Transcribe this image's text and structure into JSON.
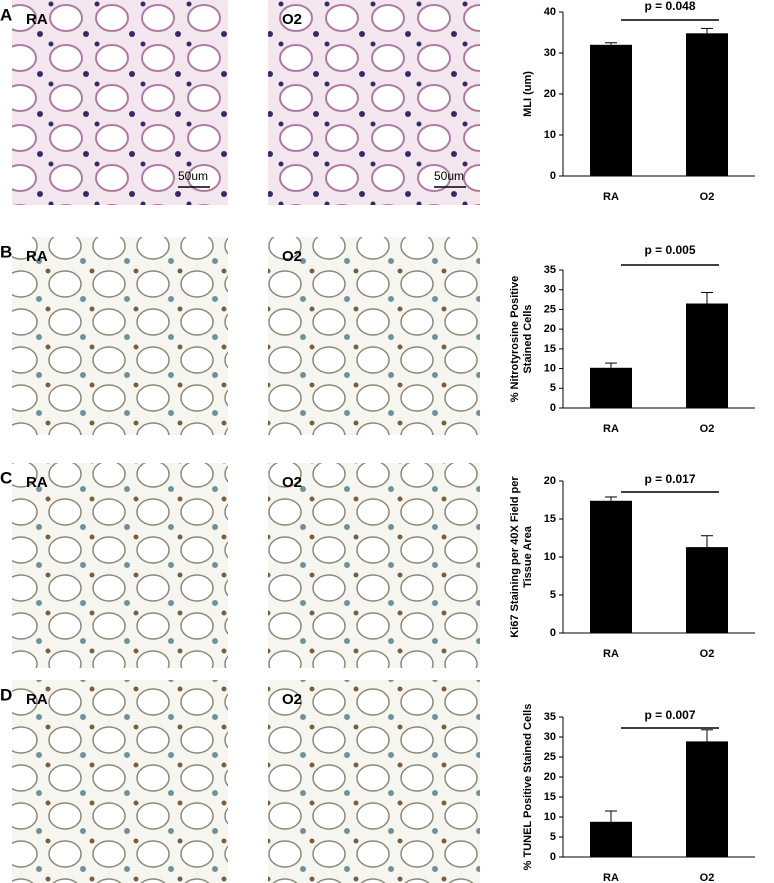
{
  "panels": [
    {
      "letter": "A",
      "images": [
        {
          "label": "RA",
          "scale_bar": "50um"
        },
        {
          "label": "O2",
          "scale_bar": "50um"
        }
      ]
    },
    {
      "letter": "B",
      "images": [
        {
          "label": "RA"
        },
        {
          "label": "O2"
        }
      ]
    },
    {
      "letter": "C",
      "images": [
        {
          "label": "RA"
        },
        {
          "label": "O2"
        }
      ]
    },
    {
      "letter": "D",
      "images": [
        {
          "label": "RA"
        },
        {
          "label": "O2"
        }
      ]
    }
  ],
  "chart_data": [
    {
      "type": "bar",
      "categories": [
        "RA",
        "O2"
      ],
      "values": [
        32,
        34.8
      ],
      "errors": [
        0.5,
        1.2
      ],
      "color": "#000000",
      "ylim": [
        0,
        40
      ],
      "yticks": [
        0,
        10,
        20,
        30,
        40
      ],
      "y_label": [
        "MLI (um)"
      ],
      "annotation": "p = 0.048"
    },
    {
      "type": "bar",
      "categories": [
        "RA",
        "O2"
      ],
      "values": [
        10.2,
        26.5
      ],
      "errors": [
        1.2,
        2.8
      ],
      "color": "#000000",
      "ylim": [
        0,
        35
      ],
      "yticks": [
        0,
        5,
        10,
        15,
        20,
        25,
        30,
        35
      ],
      "y_label": [
        "% Nitrotyrosine Positive",
        "Stained Cells"
      ],
      "annotation": "p = 0.005"
    },
    {
      "type": "bar",
      "categories": [
        "RA",
        "O2"
      ],
      "values": [
        17.4,
        11.3
      ],
      "errors": [
        0.5,
        1.5
      ],
      "color": "#000000",
      "ylim": [
        0,
        20
      ],
      "yticks": [
        0,
        5,
        10,
        15,
        20
      ],
      "y_label": [
        "Ki67 Staining per 40X Field per",
        "Tissue Area"
      ],
      "annotation": "p = 0.017"
    },
    {
      "type": "bar",
      "categories": [
        "RA",
        "O2"
      ],
      "values": [
        8.8,
        28.9
      ],
      "errors": [
        2.7,
        2.9
      ],
      "color": "#000000",
      "ylim": [
        0,
        35
      ],
      "yticks": [
        0,
        5,
        10,
        15,
        20,
        25,
        30,
        35
      ],
      "y_label": [
        "% TUNEL Positive Stained Cells"
      ],
      "annotation": "p = 0.007"
    }
  ]
}
